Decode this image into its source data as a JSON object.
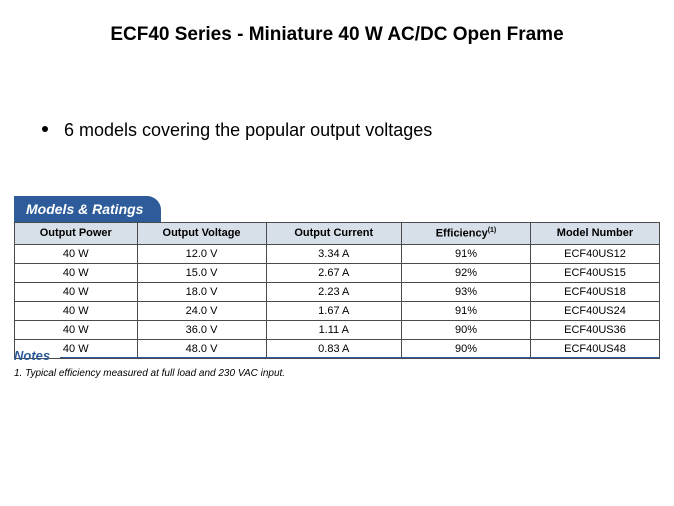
{
  "title": "ECF40 Series - Miniature 40 W AC/DC Open Frame",
  "bullet": "6 models covering the popular output voltages",
  "section_tab": "Models & Ratings",
  "table": {
    "columns": [
      "Output Power",
      "Output Voltage",
      "Output Current",
      "Efficiency",
      "Model Number"
    ],
    "efficiency_sup": "(1)",
    "rows": [
      [
        "40 W",
        "12.0 V",
        "3.34 A",
        "91%",
        "ECF40US12"
      ],
      [
        "40 W",
        "15.0 V",
        "2.67 A",
        "92%",
        "ECF40US15"
      ],
      [
        "40 W",
        "18.0 V",
        "2.23 A",
        "93%",
        "ECF40US18"
      ],
      [
        "40 W",
        "24.0 V",
        "1.67 A",
        "91%",
        "ECF40US24"
      ],
      [
        "40 W",
        "36.0 V",
        "1.11 A",
        "90%",
        "ECF40US36"
      ],
      [
        "40 W",
        "48.0 V",
        "0.83 A",
        "90%",
        "ECF40US48"
      ]
    ],
    "header_bg": "#d7dfe9",
    "border_color": "#4b4b4b"
  },
  "notes": {
    "heading": "Notes",
    "footnote": "1. Typical efficiency measured at full load and 230 VAC input."
  },
  "colors": {
    "accent": "#2e5c9a",
    "background": "#ffffff",
    "text": "#000000"
  }
}
